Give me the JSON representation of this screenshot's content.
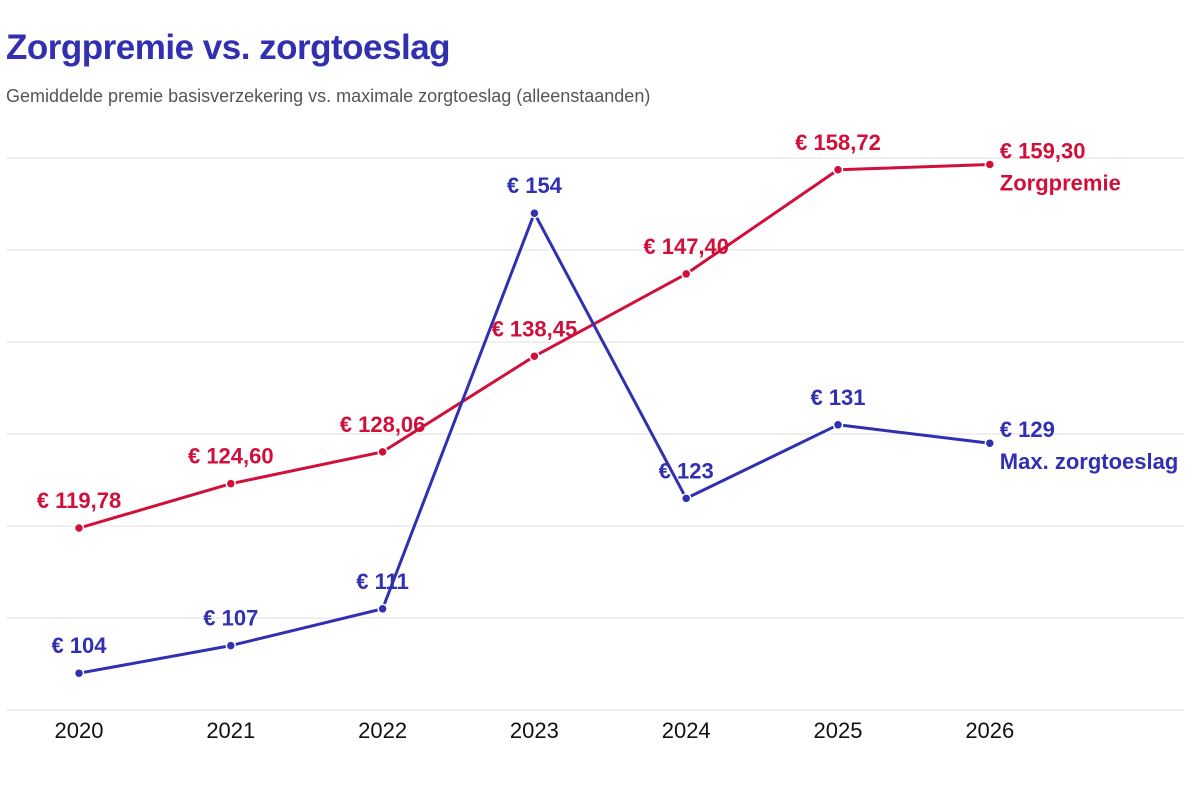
{
  "title": "Zorgpremie vs. zorgtoeslag",
  "subtitle": "Gemiddelde premie basisverzekering vs. maximale zorgtoeslag (alleenstaanden)",
  "chart_data": {
    "type": "line",
    "title": "Zorgpremie vs. zorgtoeslag",
    "subtitle": "Gemiddelde premie basisverzekering vs. maximale zorgtoeslag (alleenstaanden)",
    "xlabel": "",
    "ylabel": "",
    "x": [
      "2020",
      "2021",
      "2022",
      "2023",
      "2024",
      "2025",
      "2026"
    ],
    "ylim": [
      100,
      160
    ],
    "yticks": [
      100,
      110,
      120,
      130,
      140,
      150,
      160
    ],
    "grid": true,
    "legend": "direct-labels-right",
    "series": [
      {
        "name": "Zorgpremie",
        "color": "#d0103a",
        "values": [
          119.78,
          124.6,
          128.06,
          138.45,
          147.4,
          158.72,
          159.3
        ],
        "labels": [
          "€ 119,78",
          "€ 124,60",
          "€ 128,06",
          "€ 138,45",
          "€ 147,40",
          "€ 158,72",
          "€ 159,30"
        ]
      },
      {
        "name": "Max. zorgtoeslag",
        "color": "#3030b0",
        "values": [
          104,
          107,
          111,
          154,
          123,
          131,
          129
        ],
        "labels": [
          "€ 104",
          "€ 107",
          "€ 111",
          "€ 154",
          "€ 123",
          "€ 131",
          "€ 129"
        ]
      }
    ]
  }
}
